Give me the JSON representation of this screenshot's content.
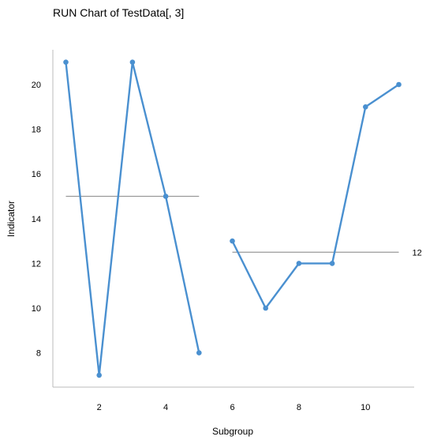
{
  "chart_data": {
    "type": "line",
    "title": "RUN Chart of TestData[, 3]",
    "xlabel": "Subgroup",
    "ylabel": "Indicator",
    "xlim": [
      0.6,
      11.4
    ],
    "ylim": [
      6.5,
      21.5
    ],
    "xticks": [
      2,
      4,
      6,
      8,
      10
    ],
    "yticks": [
      8,
      10,
      12,
      14,
      16,
      18,
      20
    ],
    "grid": false,
    "line_color": "#4a90d0",
    "median_color": "#999999",
    "series": [
      {
        "x": [
          1,
          2,
          3,
          4,
          5
        ],
        "values": [
          21,
          7,
          21,
          15,
          8
        ]
      },
      {
        "x": [
          6,
          7,
          8,
          9,
          10,
          11
        ],
        "values": [
          13,
          10,
          12,
          12,
          19,
          20
        ]
      }
    ],
    "median_lines": [
      {
        "x_start": 1,
        "x_end": 5,
        "y": 15
      },
      {
        "x_start": 6,
        "x_end": 11,
        "y": 12.5
      }
    ],
    "annotations": [
      {
        "text": "12",
        "x": 11,
        "y": 12.5
      }
    ]
  }
}
